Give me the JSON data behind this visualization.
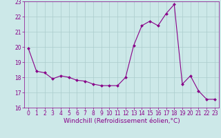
{
  "x": [
    0,
    1,
    2,
    3,
    4,
    5,
    6,
    7,
    8,
    9,
    10,
    11,
    12,
    13,
    14,
    15,
    16,
    17,
    18,
    19,
    20,
    21,
    22,
    23
  ],
  "y": [
    19.9,
    18.4,
    18.3,
    17.9,
    18.1,
    18.0,
    17.8,
    17.75,
    17.55,
    17.45,
    17.45,
    17.45,
    18.0,
    20.1,
    21.4,
    21.7,
    21.4,
    22.2,
    22.8,
    17.55,
    18.1,
    17.1,
    16.55,
    16.55
  ],
  "line_color": "#880088",
  "marker": "D",
  "marker_size": 2.0,
  "bg_color": "#cce8e8",
  "grid_color": "#aacccc",
  "xlabel": "Windchill (Refroidissement éolien,°C)",
  "xlabel_color": "#880088",
  "tick_color": "#880088",
  "ylim": [
    16,
    23
  ],
  "xlim": [
    -0.5,
    23.5
  ],
  "yticks": [
    16,
    17,
    18,
    19,
    20,
    21,
    22,
    23
  ],
  "xticks": [
    0,
    1,
    2,
    3,
    4,
    5,
    6,
    7,
    8,
    9,
    10,
    11,
    12,
    13,
    14,
    15,
    16,
    17,
    18,
    19,
    20,
    21,
    22,
    23
  ],
  "tick_fontsize": 5.5,
  "xlabel_fontsize": 6.5,
  "linewidth": 0.8
}
